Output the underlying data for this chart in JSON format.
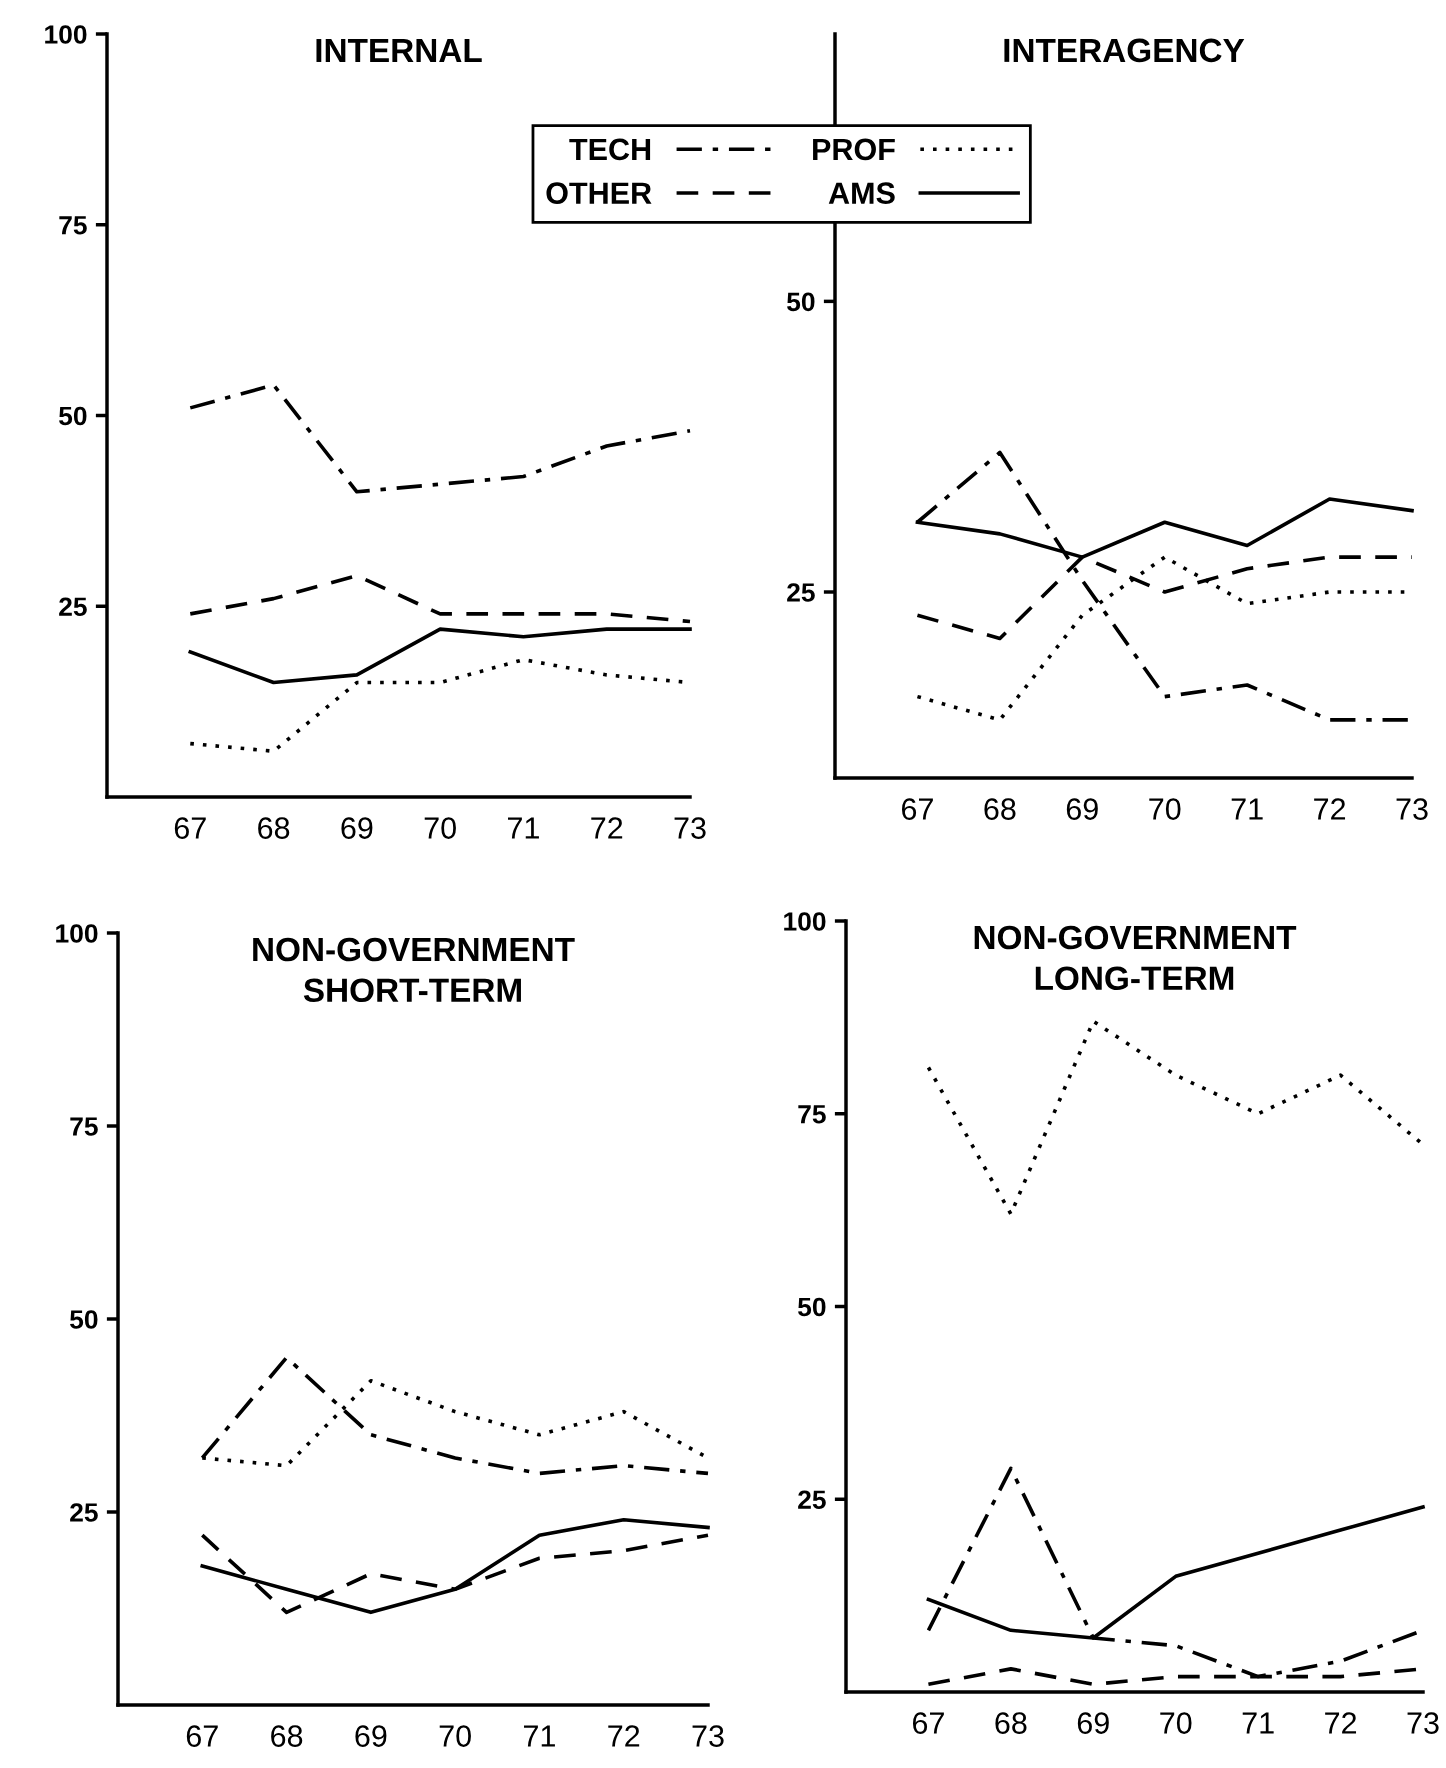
{
  "chart_data": [
    {
      "type": "line",
      "title": "INTERNAL",
      "x": [
        67,
        68,
        69,
        70,
        71,
        72,
        73
      ],
      "xlim": [
        66,
        73
      ],
      "xticks": [
        67,
        68,
        69,
        70,
        71,
        72,
        73
      ],
      "ylim": [
        0,
        100
      ],
      "yticks": [
        25,
        50,
        75,
        100
      ],
      "grid": false,
      "marker": "none",
      "legend": "top right",
      "series": [
        {
          "name": "TECH",
          "color": "#000000",
          "line_style": "dashdot",
          "values": [
            51,
            54,
            40,
            41,
            42,
            46,
            48
          ]
        },
        {
          "name": "PROF",
          "color": "#000000",
          "line_style": "dotted",
          "values": [
            7,
            6,
            15,
            15,
            18,
            16,
            15
          ]
        },
        {
          "name": "OTHER",
          "color": "#000000",
          "line_style": "dashed",
          "values": [
            24,
            26,
            29,
            24,
            24,
            24,
            23
          ]
        },
        {
          "name": "AMS",
          "color": "#000000",
          "line_style": "solid",
          "values": [
            19,
            15,
            16,
            22,
            21,
            22,
            22
          ]
        }
      ]
    },
    {
      "type": "line",
      "title": "INTERAGENCY",
      "x": [
        67,
        68,
        69,
        70,
        71,
        72,
        73
      ],
      "xlim": [
        66,
        73
      ],
      "xticks": [
        67,
        68,
        69,
        70,
        71,
        72,
        73
      ],
      "ylim": [
        9,
        73
      ],
      "yticks": [
        25,
        50
      ],
      "grid": false,
      "marker": "none",
      "series": [
        {
          "color": "#000000",
          "line_style": "dashdot",
          "values": [
            31,
            37,
            26,
            16,
            17,
            14,
            14
          ]
        },
        {
          "color": "#000000",
          "line_style": "dotted",
          "values": [
            16,
            14,
            23,
            28,
            24,
            25,
            25
          ]
        },
        {
          "color": "#000000",
          "line_style": "dashed",
          "values": [
            23,
            21,
            28,
            25,
            27,
            28,
            28
          ]
        },
        {
          "color": "#000000",
          "line_style": "solid",
          "values": [
            31,
            30,
            28,
            31,
            29,
            33,
            32
          ]
        }
      ]
    },
    {
      "type": "line",
      "title": "NON-GOVERNMENT\nSHORT-TERM",
      "x": [
        67,
        68,
        69,
        70,
        71,
        72,
        73
      ],
      "xlim": [
        66,
        73
      ],
      "xticks": [
        67,
        68,
        69,
        70,
        71,
        72,
        73
      ],
      "ylim": [
        0,
        100
      ],
      "yticks": [
        25,
        50,
        75,
        100
      ],
      "grid": false,
      "marker": "none",
      "series": [
        {
          "color": "#000000",
          "line_style": "dashdot",
          "values": [
            32,
            45,
            35,
            32,
            30,
            31,
            30
          ]
        },
        {
          "color": "#000000",
          "line_style": "dotted",
          "values": [
            32,
            31,
            42,
            38,
            35,
            38,
            32
          ]
        },
        {
          "color": "#000000",
          "line_style": "dashed",
          "values": [
            22,
            12,
            17,
            15,
            19,
            20,
            22
          ]
        },
        {
          "color": "#000000",
          "line_style": "solid",
          "values": [
            18,
            15,
            12,
            15,
            22,
            24,
            23
          ]
        }
      ]
    },
    {
      "type": "line",
      "title": "NON-GOVERNMENT\nLONG-TERM",
      "x": [
        67,
        68,
        69,
        70,
        71,
        72,
        73
      ],
      "xlim": [
        66,
        73
      ],
      "xticks": [
        67,
        68,
        69,
        70,
        71,
        72,
        73
      ],
      "ylim": [
        0,
        100
      ],
      "yticks": [
        25,
        50,
        75,
        100
      ],
      "grid": false,
      "marker": "none",
      "series": [
        {
          "color": "#000000",
          "line_style": "dashdot",
          "values": [
            8,
            29,
            7,
            6,
            2,
            4,
            8
          ]
        },
        {
          "color": "#000000",
          "line_style": "dotted",
          "values": [
            81,
            62,
            87,
            80,
            75,
            80,
            71
          ]
        },
        {
          "color": "#000000",
          "line_style": "dashed",
          "values": [
            1,
            3,
            1,
            2,
            2,
            2,
            3
          ]
        },
        {
          "color": "#000000",
          "line_style": "solid",
          "values": [
            12,
            8,
            7,
            15,
            18,
            21,
            24
          ]
        }
      ]
    }
  ]
}
